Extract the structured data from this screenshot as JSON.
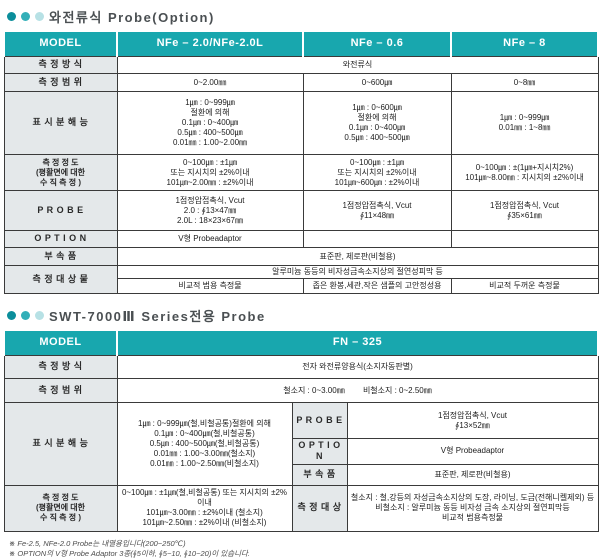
{
  "colors": {
    "accent_teal": "#18a7ae",
    "label_bg": "#e4e8ea",
    "bullet_dark": "#0b8e9b",
    "bullet_mid": "#33afb8",
    "bullet_light": "#b7e1e5"
  },
  "table1": {
    "title": "와전류식 Probe(Option)",
    "header": {
      "model": "MODEL",
      "col1": "NFe – 2.0/NFe-2.0L",
      "col2": "NFe – 0.6",
      "col3": "NFe – 8"
    },
    "method": {
      "label": "측 정 방 식",
      "value": "와전류식"
    },
    "range": {
      "label": "측 정 범 위",
      "col1": "0~2.00㎜",
      "col2": "0~600㎛",
      "col3": "0~8㎜"
    },
    "resolution": {
      "label": "표 시 분 해 능",
      "col1": [
        "1㎛ : 0~999㎛",
        "절환에 의해",
        "0.1㎛ : 0~400㎛",
        "0.5㎛ : 400~500㎛",
        "0.01㎜ : 1.00~2.00㎜"
      ],
      "col2": [
        "1㎛ : 0~600㎛",
        "절환에 의해",
        "0.1㎛ : 0~400㎛",
        "0.5㎛ : 400~500㎛"
      ],
      "col3": [
        "1㎛ : 0~999㎛",
        "0.01㎜ : 1~8㎜"
      ]
    },
    "accuracy": {
      "label": [
        "측 정 정 도",
        "(평활면에 대한",
        "수 직 측 정 )"
      ],
      "col1": [
        "0~100㎛ : ±1㎛",
        "또는 지시치의 ±2%이내",
        "101㎛~2.00㎜ : ±2%이내"
      ],
      "col2": [
        "0~100㎛ : ±1㎛",
        "또는 지시치의 ±2%이내",
        "101㎛~600㎛ : ±2%이내"
      ],
      "col3": [
        "0~100㎛ : ±(1㎛+지시치2%)",
        "101㎛~8.00㎜ : 지시치의 ±2%이내"
      ]
    },
    "probe": {
      "label": "P R O B E",
      "col1": [
        "1점정압접촉식, Vcut",
        "2.0 : ∮13×47㎜",
        "2.0L : 18×23×67㎜"
      ],
      "col2": [
        "1점정압접촉식, Vcut",
        "∮11×48㎜"
      ],
      "col3": [
        "1점정압접촉식, Vcut",
        "∮35×61㎜"
      ]
    },
    "option": {
      "label": "O P T I O N",
      "col1": "V형 Probeadaptor",
      "col2": "",
      "col3": ""
    },
    "accessory": {
      "label": "부 속 품",
      "value": "표준판, 제로판(비철용)"
    },
    "target": {
      "label": "측 정 대 상 물",
      "common": "알루미늄 동등의 비자성금속소지상의 절연성피막 등",
      "col1": "비교적 범용 측정물",
      "col2": "좁은 환봉,세관,작은 샘플의 고안정성용",
      "col3": "비교적 두꺼운 측정물"
    }
  },
  "table2": {
    "title": "SWT-7000Ⅲ Series전용 Probe",
    "header": {
      "model": "MODEL",
      "col": "FN – 325"
    },
    "method": {
      "label": "측 정 방 식",
      "value": "전자 와전류양용식(소지자동판별)"
    },
    "range": {
      "label": "측 정 범 위",
      "ferrous": "철소지 : 0~3.00㎜",
      "nonferrous": "비철소지 : 0~2.50㎜"
    },
    "resolution": {
      "label": "표 시 분 해 능",
      "lines": [
        "1㎛ : 0~999㎛(철,비철공통)절환에 의해",
        "0.1㎛ : 0~400㎛(철,비철공통)",
        "0.5㎛ : 400~500㎛(철,비철공통)",
        "0.01㎜ : 1.00~3.00㎜(철소지)",
        "0.01㎜ : 1.00~2.50㎜(비철소지)"
      ]
    },
    "probe": {
      "label": "P R O B E",
      "lines": [
        "1점정압접촉식, Vcut",
        "∮13×52㎜"
      ]
    },
    "option": {
      "label": "O P T I O N",
      "value": "V형 Probeadaptor"
    },
    "accessory": {
      "label": "부 속 품",
      "value": "표준판, 제로판(비철용)"
    },
    "accuracy": {
      "label": [
        "측 정 정 도",
        "(평활면에 대한",
        "수 직 측 정 )"
      ],
      "lines": [
        "0~100㎛ : ±1㎛(철,비철공통) 또는 지시치의 ±2%이내",
        "101㎛~3.00㎜ : ±2%이내 (철소지)",
        "101㎛~2.50㎜ : ±2%이내 (비철소지)"
      ]
    },
    "target": {
      "label": "측 정 대 상",
      "lines": [
        "철소지 : 철,강등의 자성금속소지상의 도장, 라이닝, 도금(전해니켈제외) 등",
        "비철소지 : 알루미늄 동등 비자성 금속 소지상의 절연피막등",
        "비교적 범용측정물"
      ]
    }
  },
  "footnotes": [
    "※ Fe-2.5, NFe-2.0 Probe는 내열용입니다(200~250℃)",
    "※ OPTION의 V형 Probe Adaptor 3종(∮5이하, ∮5~10, ∮10~20)이 있습니다."
  ]
}
